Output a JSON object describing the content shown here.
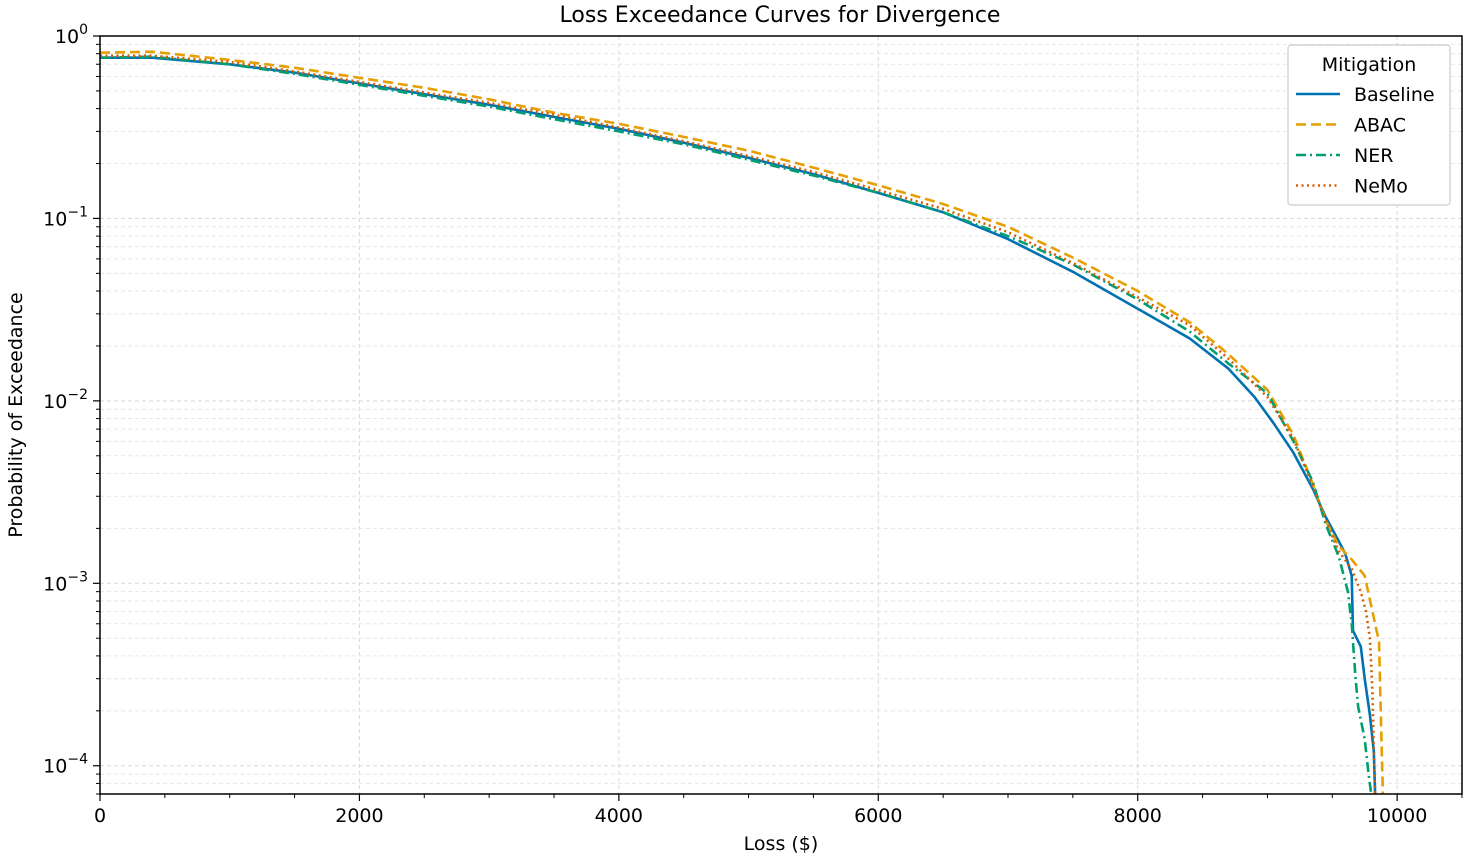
{
  "chart_data": {
    "type": "line",
    "title": "Loss Exceedance Curves for Divergence",
    "xlabel": "Loss ($)",
    "ylabel": "Probability of Exceedance",
    "xlim": [
      0,
      10500
    ],
    "ylim": [
      7e-05,
      1
    ],
    "yscale": "log",
    "grid": true,
    "x_ticks": [
      "0",
      "2000",
      "4000",
      "6000",
      "8000",
      "10000"
    ],
    "y_ticks": [
      {
        "base": "10",
        "exp": "0",
        "value": 1
      },
      {
        "base": "10",
        "exp": "−1",
        "value": 0.1
      },
      {
        "base": "10",
        "exp": "−2",
        "value": 0.01
      },
      {
        "base": "10",
        "exp": "−3",
        "value": 0.001
      },
      {
        "base": "10",
        "exp": "−4",
        "value": 0.0001
      }
    ],
    "legend": {
      "title": "Mitigation",
      "position": "top-right"
    },
    "series": [
      {
        "name": "Baseline",
        "color": "#0072b2",
        "dash": "solid",
        "points": [
          [
            0,
            0.76
          ],
          [
            400,
            0.76
          ],
          [
            1000,
            0.7
          ],
          [
            1500,
            0.63
          ],
          [
            2000,
            0.55
          ],
          [
            2500,
            0.48
          ],
          [
            3000,
            0.42
          ],
          [
            3500,
            0.36
          ],
          [
            4000,
            0.31
          ],
          [
            4500,
            0.26
          ],
          [
            5000,
            0.215
          ],
          [
            5500,
            0.175
          ],
          [
            6000,
            0.138
          ],
          [
            6500,
            0.108
          ],
          [
            7000,
            0.077
          ],
          [
            7500,
            0.051
          ],
          [
            8000,
            0.032
          ],
          [
            8400,
            0.022
          ],
          [
            8700,
            0.015
          ],
          [
            8900,
            0.0105
          ],
          [
            9050,
            0.0075
          ],
          [
            9200,
            0.0052
          ],
          [
            9350,
            0.0033
          ],
          [
            9450,
            0.0023
          ],
          [
            9550,
            0.0017
          ],
          [
            9600,
            0.00145
          ],
          [
            9650,
            0.0011
          ],
          [
            9660,
            0.00055
          ],
          [
            9720,
            0.00045
          ],
          [
            9750,
            0.0003
          ],
          [
            9790,
            0.00019
          ],
          [
            9820,
            0.00012
          ],
          [
            9830,
            7e-05
          ]
        ]
      },
      {
        "name": "ABAC",
        "color": "#e69f00",
        "dash": "dashed",
        "points": [
          [
            0,
            0.81
          ],
          [
            400,
            0.82
          ],
          [
            1000,
            0.74
          ],
          [
            1500,
            0.67
          ],
          [
            2000,
            0.59
          ],
          [
            2500,
            0.52
          ],
          [
            3000,
            0.45
          ],
          [
            3500,
            0.38
          ],
          [
            4000,
            0.33
          ],
          [
            4500,
            0.28
          ],
          [
            5000,
            0.235
          ],
          [
            5500,
            0.19
          ],
          [
            6000,
            0.152
          ],
          [
            6500,
            0.12
          ],
          [
            7000,
            0.09
          ],
          [
            7500,
            0.061
          ],
          [
            8000,
            0.04
          ],
          [
            8400,
            0.027
          ],
          [
            8700,
            0.018
          ],
          [
            9000,
            0.0115
          ],
          [
            9200,
            0.0065
          ],
          [
            9350,
            0.0035
          ],
          [
            9450,
            0.0022
          ],
          [
            9550,
            0.0016
          ],
          [
            9650,
            0.00135
          ],
          [
            9750,
            0.0011
          ],
          [
            9830,
            0.0006
          ],
          [
            9860,
            0.00048
          ],
          [
            9870,
            0.00025
          ],
          [
            9880,
            0.00013
          ],
          [
            9890,
            7e-05
          ]
        ]
      },
      {
        "name": "NER",
        "color": "#009e73",
        "dash": "dashdot",
        "points": [
          [
            0,
            0.76
          ],
          [
            400,
            0.77
          ],
          [
            1000,
            0.7
          ],
          [
            1500,
            0.62
          ],
          [
            2000,
            0.54
          ],
          [
            2500,
            0.47
          ],
          [
            3000,
            0.41
          ],
          [
            3500,
            0.35
          ],
          [
            4000,
            0.3
          ],
          [
            4500,
            0.255
          ],
          [
            5000,
            0.21
          ],
          [
            5500,
            0.172
          ],
          [
            6000,
            0.138
          ],
          [
            6500,
            0.108
          ],
          [
            7000,
            0.08
          ],
          [
            7500,
            0.056
          ],
          [
            8000,
            0.036
          ],
          [
            8400,
            0.024
          ],
          [
            8700,
            0.016
          ],
          [
            9000,
            0.011
          ],
          [
            9200,
            0.006
          ],
          [
            9350,
            0.0036
          ],
          [
            9450,
            0.0021
          ],
          [
            9550,
            0.0014
          ],
          [
            9620,
            0.0009
          ],
          [
            9650,
            0.0006
          ],
          [
            9680,
            0.0003
          ],
          [
            9700,
            0.00021
          ],
          [
            9750,
            0.00014
          ],
          [
            9780,
            9e-05
          ],
          [
            9800,
            7e-05
          ]
        ]
      },
      {
        "name": "NeMo",
        "color": "#d55e00",
        "dash": "dotted",
        "points": [
          [
            0,
            0.78
          ],
          [
            400,
            0.78
          ],
          [
            1000,
            0.72
          ],
          [
            1500,
            0.64
          ],
          [
            2000,
            0.56
          ],
          [
            2500,
            0.49
          ],
          [
            3000,
            0.43
          ],
          [
            3500,
            0.37
          ],
          [
            4000,
            0.315
          ],
          [
            4500,
            0.265
          ],
          [
            5000,
            0.22
          ],
          [
            5500,
            0.18
          ],
          [
            6000,
            0.143
          ],
          [
            6500,
            0.113
          ],
          [
            7000,
            0.084
          ],
          [
            7500,
            0.057
          ],
          [
            8000,
            0.037
          ],
          [
            8400,
            0.026
          ],
          [
            8700,
            0.017
          ],
          [
            9000,
            0.0105
          ],
          [
            9200,
            0.0062
          ],
          [
            9350,
            0.0034
          ],
          [
            9450,
            0.0022
          ],
          [
            9550,
            0.0015
          ],
          [
            9650,
            0.0012
          ],
          [
            9720,
            0.0009
          ],
          [
            9760,
            0.0007
          ],
          [
            9790,
            0.0005
          ],
          [
            9810,
            0.00025
          ],
          [
            9820,
            0.00012
          ],
          [
            9830,
            7e-05
          ]
        ]
      }
    ]
  }
}
